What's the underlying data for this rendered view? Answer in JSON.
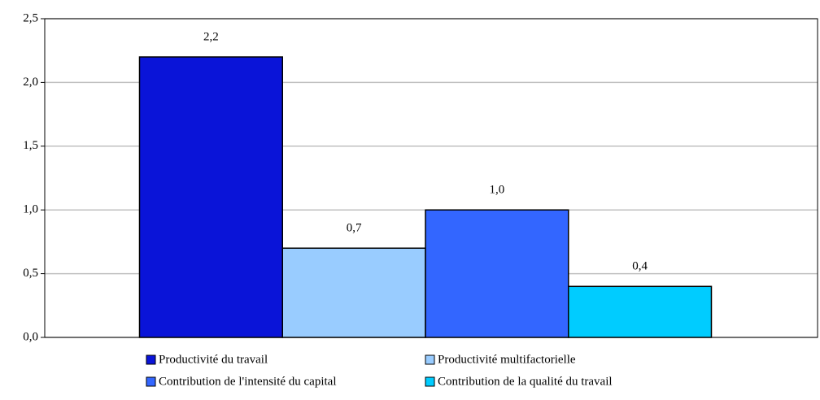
{
  "chart_data": {
    "type": "bar",
    "series": [
      {
        "name": "Productivité du travail",
        "color": "#0a14d8",
        "values": [
          2.2
        ],
        "value_labels": [
          "2,2"
        ]
      },
      {
        "name": "Productivité multifactorielle",
        "color": "#99ccff",
        "values": [
          0.7
        ],
        "value_labels": [
          "0,7"
        ]
      },
      {
        "name": "Contribution de l'intensité du capital",
        "color": "#3366ff",
        "values": [
          1.0
        ],
        "value_labels": [
          "1,0"
        ]
      },
      {
        "name": "Contribution de la qualité du travail",
        "color": "#00ccff",
        "values": [
          0.4
        ],
        "value_labels": [
          "0,4"
        ]
      }
    ],
    "ylim": [
      0,
      2.5
    ],
    "yticks": [
      {
        "value": 0,
        "label": "0,0"
      },
      {
        "value": 0.5,
        "label": "0,5"
      },
      {
        "value": 1.0,
        "label": "1,0"
      },
      {
        "value": 1.5,
        "label": "1,5"
      },
      {
        "value": 2.0,
        "label": "2,0"
      },
      {
        "value": 2.5,
        "label": "2,5"
      }
    ],
    "grid": true
  }
}
